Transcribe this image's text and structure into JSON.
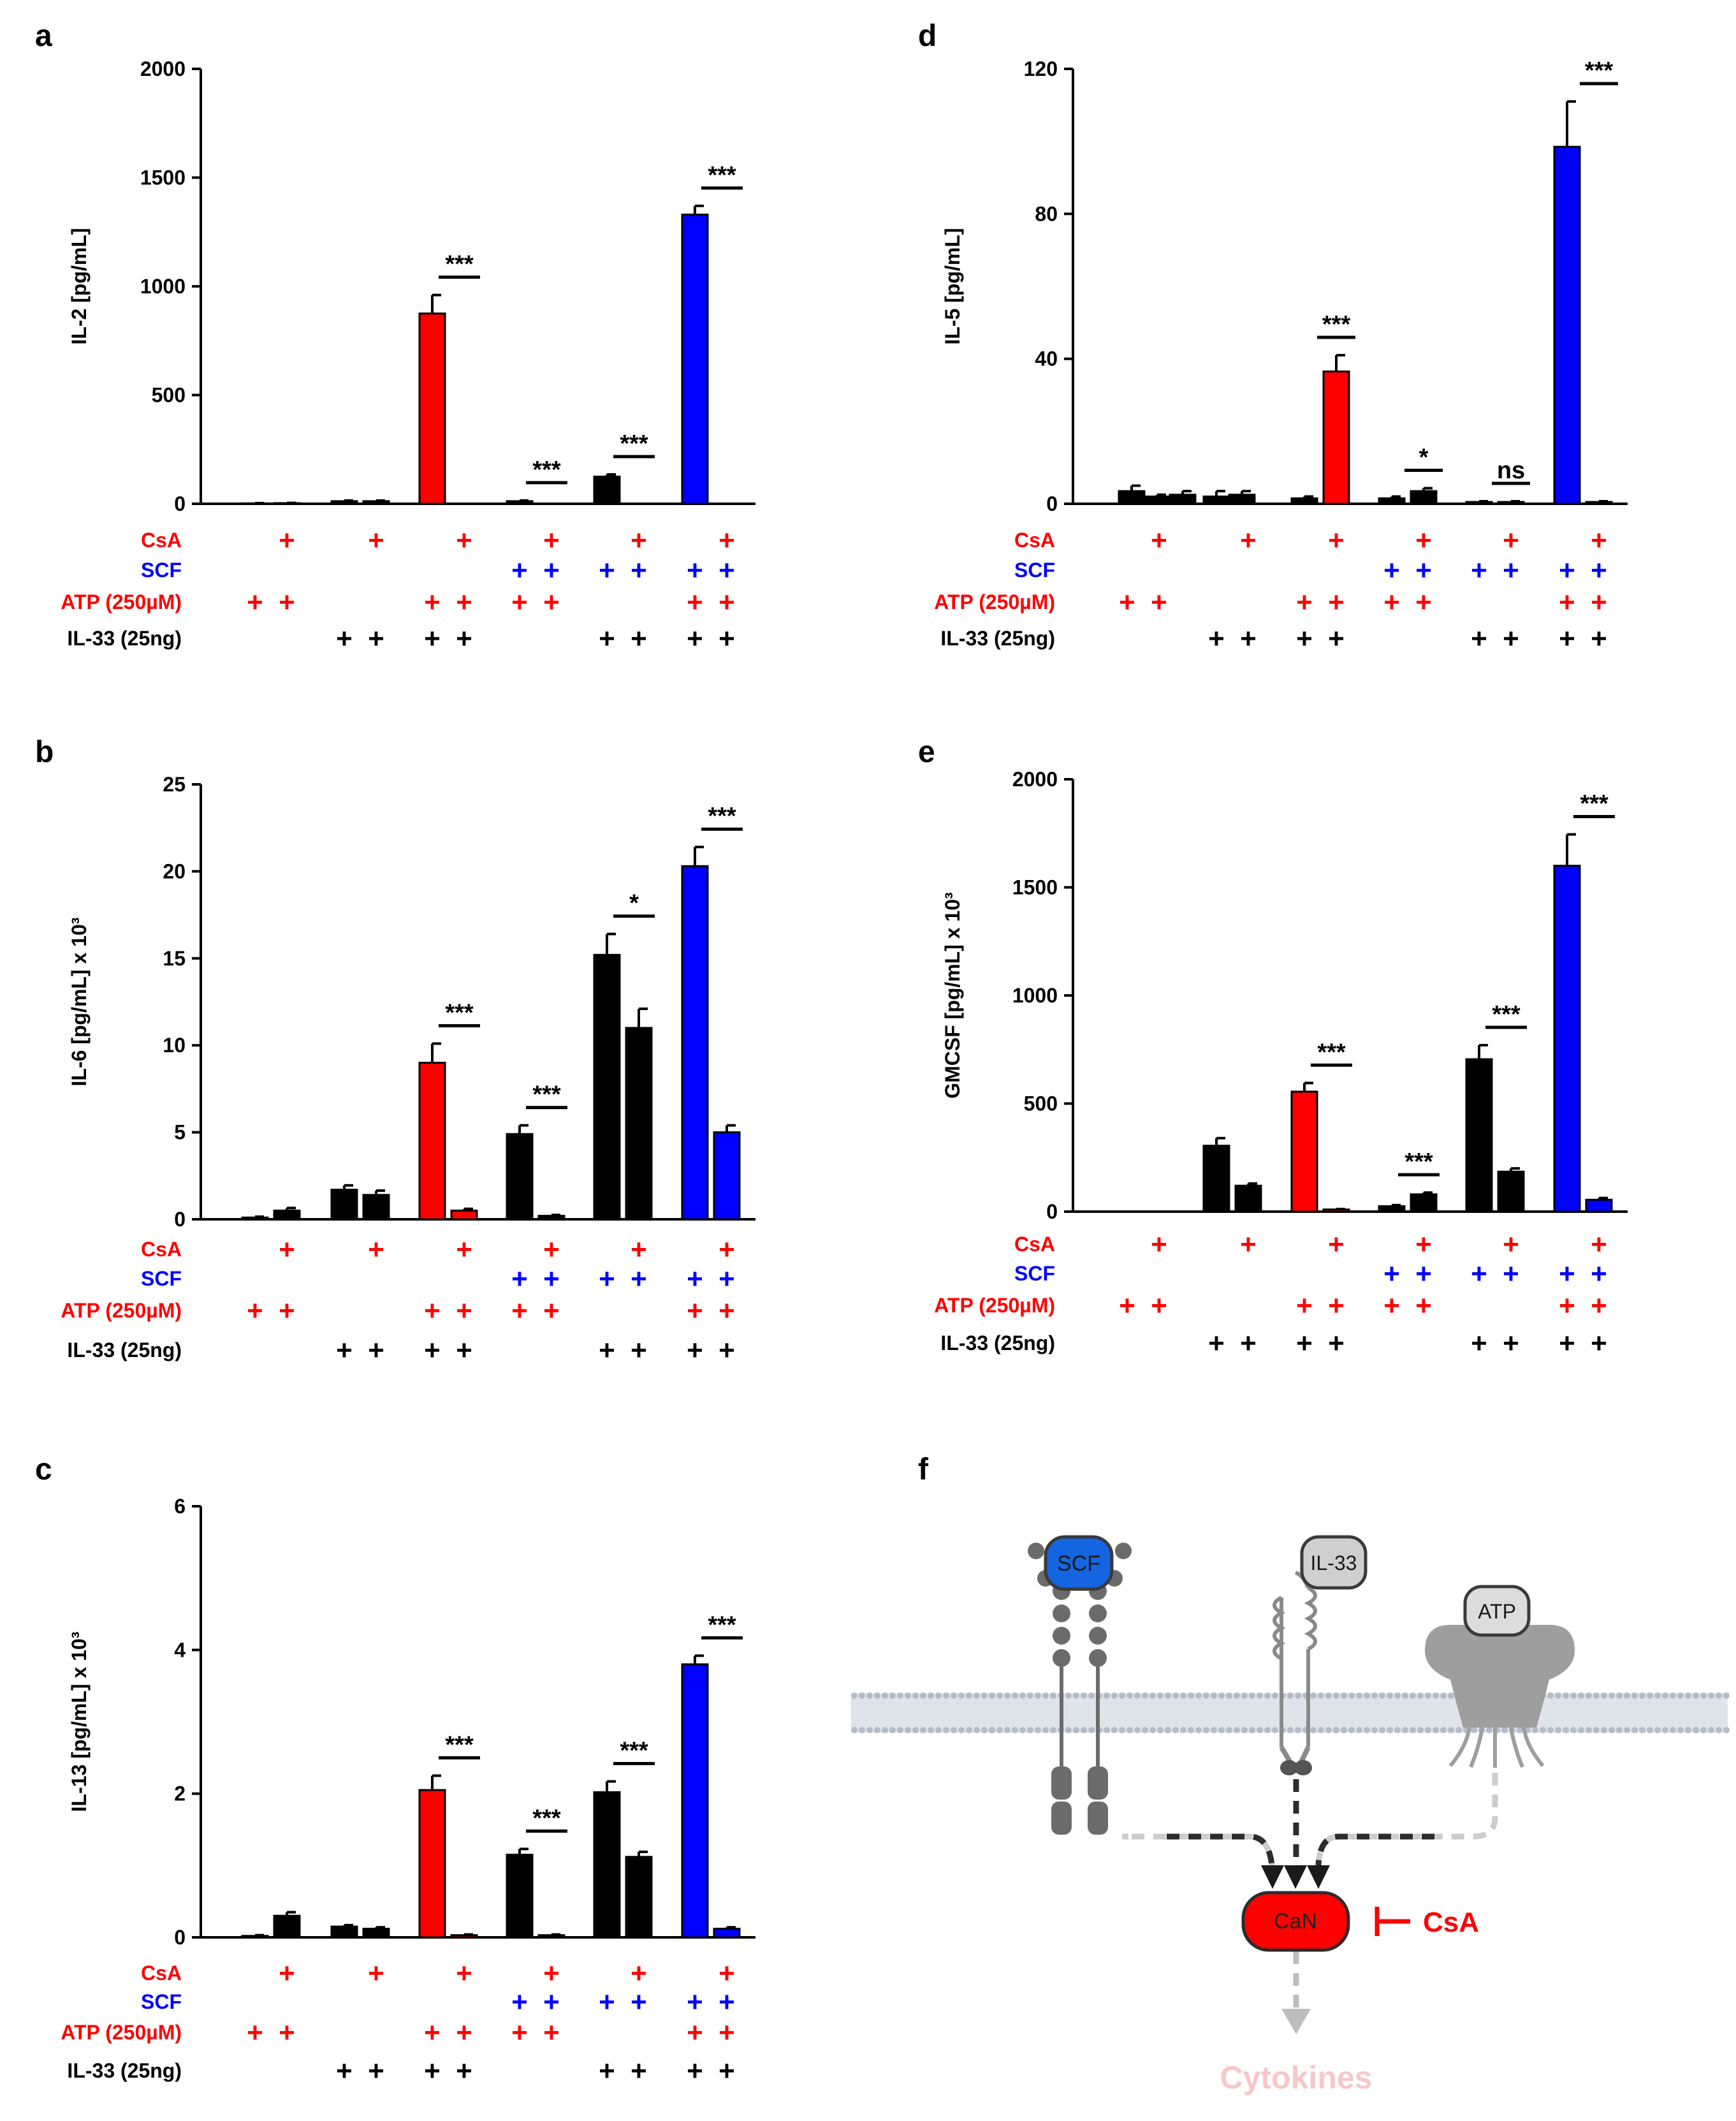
{
  "colors": {
    "red": "#ff0000",
    "blue": "#0000ff",
    "black": "#000000",
    "membrane": "#b5bcc7",
    "receptor_dark": "#6b6b6b",
    "receptor_light": "#c8c8c8",
    "scf_blue": "#1565e0",
    "cytokine_pink": "#f7c8c8"
  },
  "row_labels": {
    "csa": "CsA",
    "scf": "SCF",
    "atp": "ATP (250µM)",
    "il33": "IL-33 (25ng)"
  },
  "plus_sign": "+",
  "conditions": [
    {
      "csa": false,
      "scf": false,
      "atp": true,
      "il33": false
    },
    {
      "csa": true,
      "scf": false,
      "atp": true,
      "il33": false
    },
    {
      "csa": false,
      "scf": false,
      "atp": false,
      "il33": true
    },
    {
      "csa": true,
      "scf": false,
      "atp": false,
      "il33": true
    },
    {
      "csa": false,
      "scf": false,
      "atp": true,
      "il33": true
    },
    {
      "csa": true,
      "scf": false,
      "atp": true,
      "il33": true
    },
    {
      "csa": false,
      "scf": true,
      "atp": true,
      "il33": false
    },
    {
      "csa": true,
      "scf": true,
      "atp": true,
      "il33": false
    },
    {
      "csa": false,
      "scf": true,
      "atp": false,
      "il33": true
    },
    {
      "csa": true,
      "scf": true,
      "atp": false,
      "il33": true
    },
    {
      "csa": false,
      "scf": true,
      "atp": true,
      "il33": true
    },
    {
      "csa": true,
      "scf": true,
      "atp": true,
      "il33": true
    }
  ],
  "chart_data": [
    {
      "panel": "a",
      "type": "bar",
      "ylabel": "IL-2 [pg/mL]",
      "ylim": [
        0,
        2000
      ],
      "yticks": [
        "0",
        "500",
        "1000",
        "1500",
        "2000"
      ],
      "values": [
        2,
        3,
        12,
        12,
        875,
        0,
        12,
        0,
        125,
        0,
        1330,
        0
      ],
      "errors": [
        1,
        1,
        3,
        3,
        85,
        0,
        3,
        0,
        10,
        0,
        40,
        0
      ],
      "bar_colors": [
        "black",
        "black",
        "black",
        "black",
        "red",
        "red",
        "black",
        "black",
        "black",
        "black",
        "blue",
        "blue"
      ],
      "significance": [
        {
          "pair": 2,
          "label": "***"
        },
        {
          "pair": 3,
          "label": "***"
        },
        {
          "pair": 4,
          "label": "***"
        },
        {
          "pair": 5,
          "label": "***"
        }
      ]
    },
    {
      "panel": "b",
      "type": "bar",
      "ylabel": "IL-6 [pg/mL] x 10³",
      "ylim": [
        0,
        25
      ],
      "yticks": [
        "0",
        "5",
        "10",
        "15",
        "20",
        "25"
      ],
      "values": [
        0.1,
        0.5,
        1.7,
        1.4,
        9.0,
        0.5,
        4.9,
        0.2,
        15.2,
        11.0,
        20.3,
        5.0
      ],
      "errors": [
        0.05,
        0.15,
        0.25,
        0.25,
        1.1,
        0.1,
        0.5,
        0.05,
        1.2,
        1.1,
        1.1,
        0.4
      ],
      "bar_colors": [
        "black",
        "black",
        "black",
        "black",
        "red",
        "red",
        "black",
        "black",
        "black",
        "black",
        "blue",
        "blue"
      ],
      "significance": [
        {
          "pair": 2,
          "label": "***"
        },
        {
          "pair": 3,
          "label": "***"
        },
        {
          "pair": 4,
          "label": "*"
        },
        {
          "pair": 5,
          "label": "***"
        }
      ]
    },
    {
      "panel": "c",
      "type": "bar",
      "ylabel": "IL-13 [pg/mL] x 10³",
      "ylim": [
        0,
        6
      ],
      "yticks": [
        "0",
        "2",
        "4",
        "6"
      ],
      "values": [
        0.02,
        0.3,
        0.15,
        0.12,
        2.05,
        0.03,
        1.15,
        0.03,
        2.02,
        1.12,
        3.8,
        0.12
      ],
      "errors": [
        0.01,
        0.05,
        0.02,
        0.02,
        0.2,
        0.01,
        0.08,
        0.01,
        0.15,
        0.07,
        0.12,
        0.02
      ],
      "bar_colors": [
        "black",
        "black",
        "black",
        "black",
        "red",
        "red",
        "black",
        "black",
        "black",
        "black",
        "blue",
        "blue"
      ],
      "significance": [
        {
          "pair": 2,
          "label": "***"
        },
        {
          "pair": 3,
          "label": "***"
        },
        {
          "pair": 4,
          "label": "***"
        },
        {
          "pair": 5,
          "label": "***"
        }
      ]
    },
    {
      "panel": "d",
      "type": "bar",
      "ylabel": "IL-5 [pg/mL]",
      "ylim": [
        0,
        120
      ],
      "yticks": [
        "0",
        "40",
        "80",
        "120"
      ],
      "values": [
        3.5,
        2.0,
        2.5,
        2.0,
        2.5,
        1.5,
        36.5,
        0,
        1.5,
        3.5,
        0.5,
        0.5,
        98.5,
        0.5
      ],
      "errors": [
        1.5,
        0.5,
        1.0,
        1.5,
        1.0,
        0.5,
        4.5,
        0,
        0.5,
        0.8,
        0.2,
        0.2,
        12.5,
        0.2
      ],
      "bar_colors": [
        "black",
        "black",
        "black",
        "black",
        "black",
        "black",
        "red",
        "red",
        "black",
        "black",
        "black",
        "black",
        "blue",
        "blue"
      ],
      "bar_x_mode": "triple_first",
      "significance": [
        {
          "pair": 2,
          "label": "***"
        },
        {
          "pair": 3,
          "label": "*"
        },
        {
          "pair": 4,
          "label": "ns"
        },
        {
          "pair": 5,
          "label": "***"
        }
      ]
    },
    {
      "panel": "e",
      "type": "bar",
      "ylabel": "GMCSF [pg/mL] x 10³",
      "ylim": [
        0,
        2000
      ],
      "yticks": [
        "0",
        "500",
        "1000",
        "1500",
        "2000"
      ],
      "values": [
        0,
        0,
        305,
        120,
        555,
        10,
        25,
        80,
        705,
        185,
        1600,
        55
      ],
      "errors": [
        0,
        0,
        35,
        10,
        40,
        2,
        5,
        8,
        65,
        15,
        145,
        8
      ],
      "bar_colors": [
        "black",
        "black",
        "black",
        "black",
        "red",
        "red",
        "black",
        "black",
        "black",
        "black",
        "blue",
        "blue"
      ],
      "significance": [
        {
          "pair": 2,
          "label": "***"
        },
        {
          "pair": 3,
          "label": "***"
        },
        {
          "pair": 4,
          "label": "***"
        },
        {
          "pair": 5,
          "label": "***"
        }
      ]
    }
  ],
  "panel_letters": {
    "a": "a",
    "b": "b",
    "c": "c",
    "d": "d",
    "e": "e",
    "f": "f"
  },
  "diagram": {
    "scf_label": "SCF",
    "il33_label": "IL-33",
    "atp_label": "ATP",
    "can_label": "CaN",
    "csa_label": "CsA",
    "cytokines_label": "Cytokines"
  }
}
